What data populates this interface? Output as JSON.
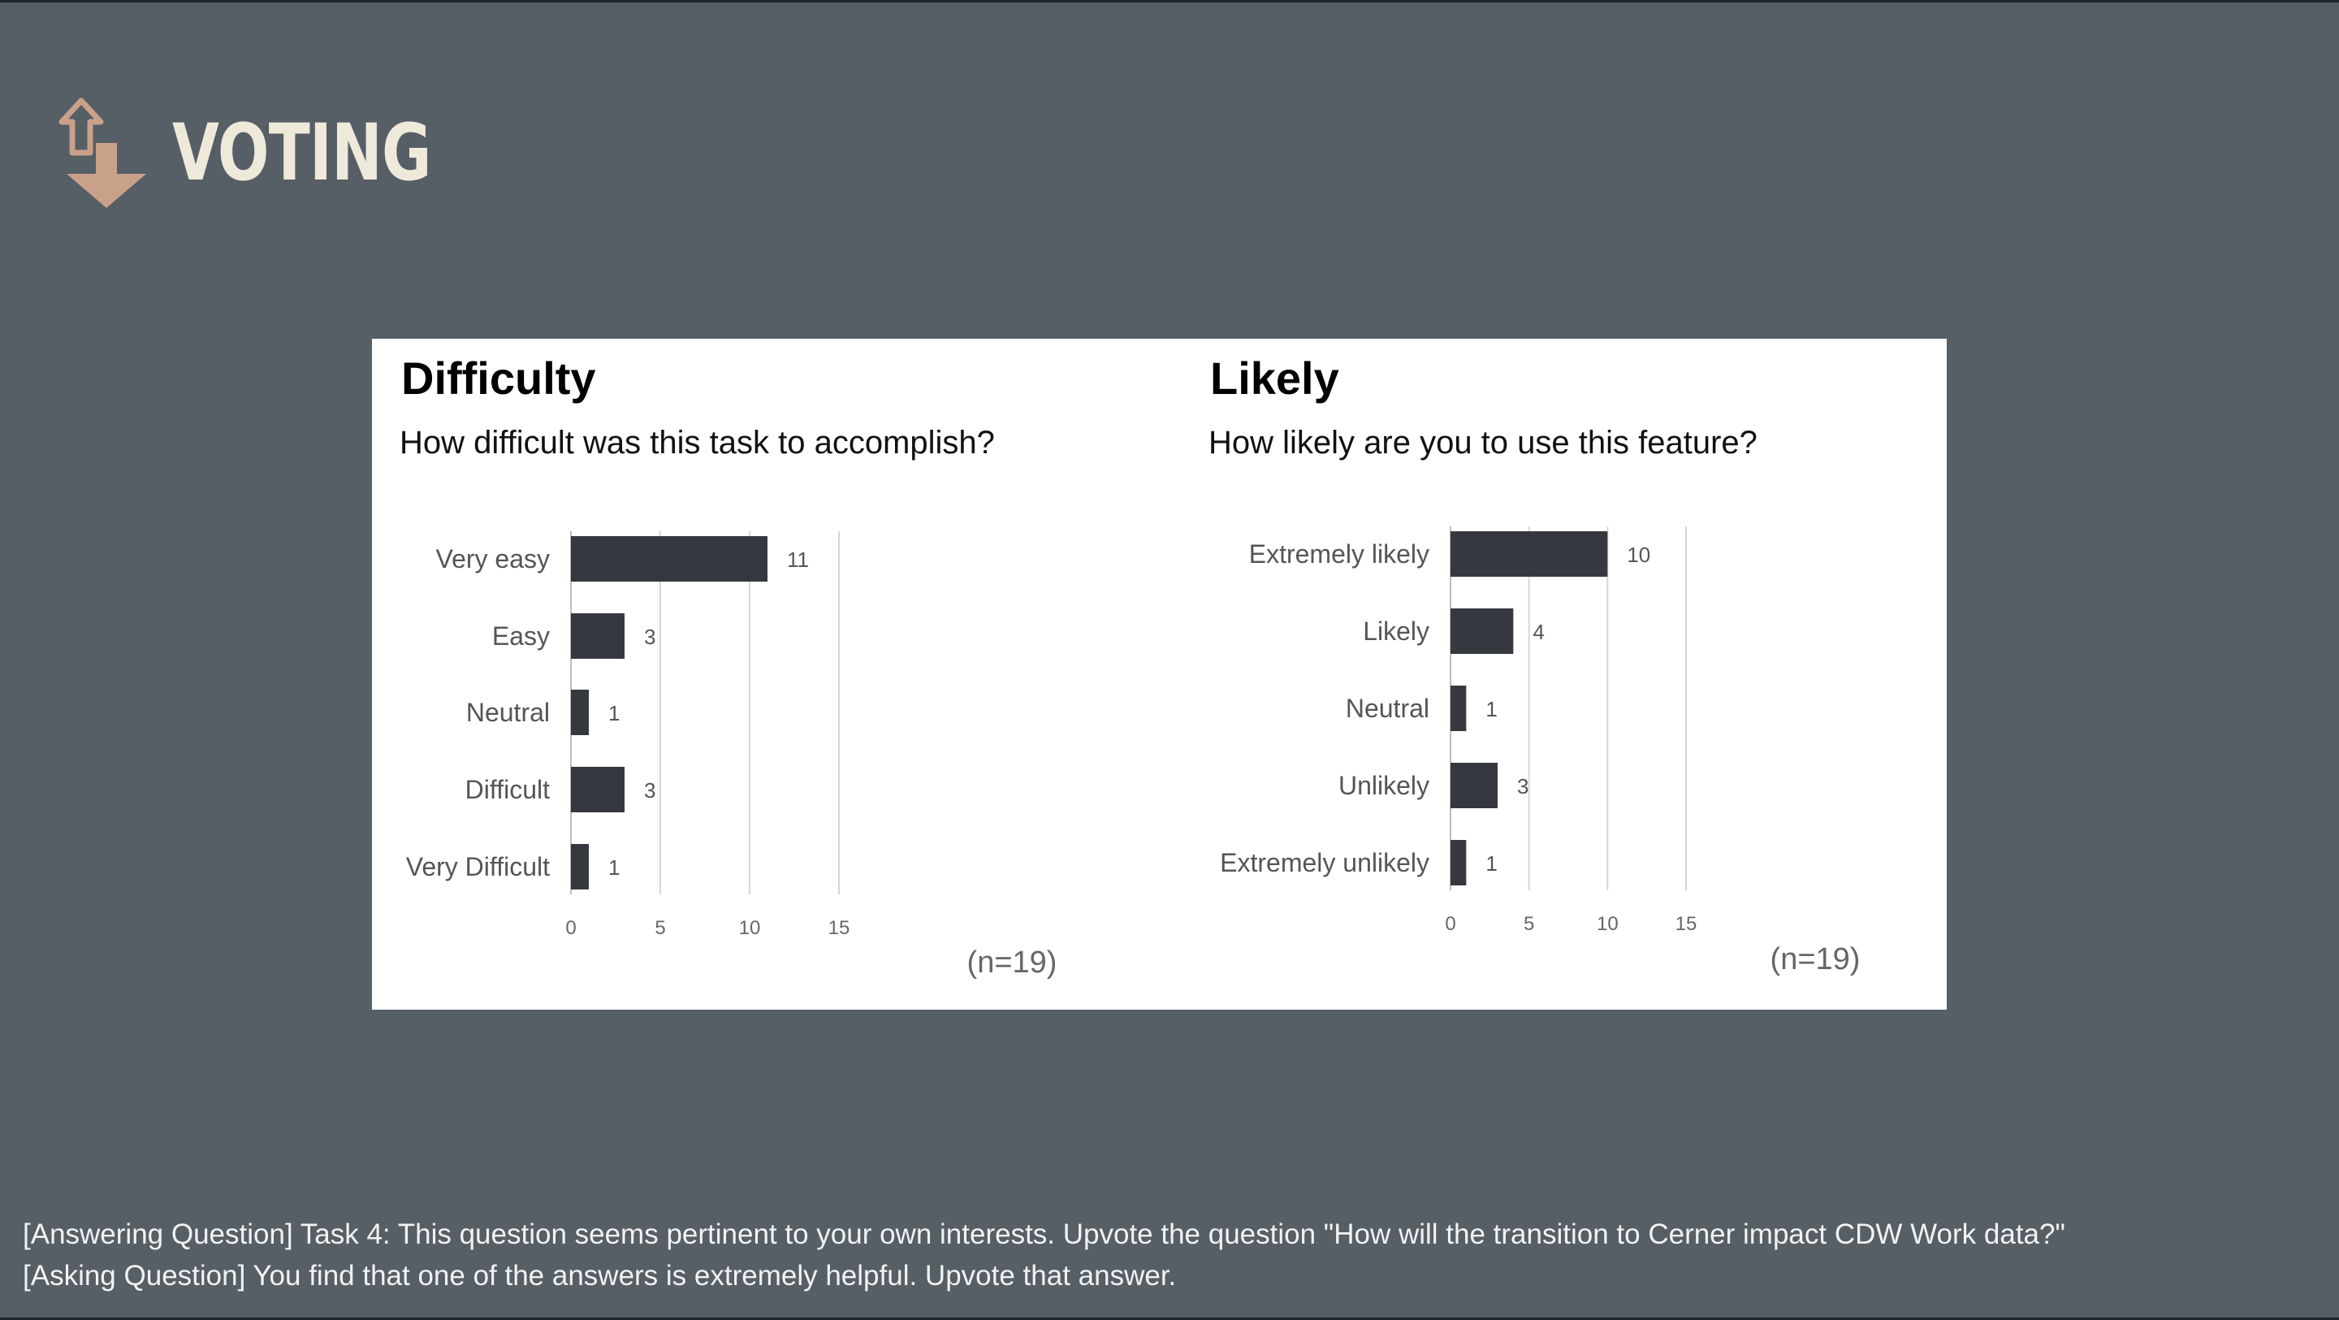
{
  "page": {
    "title": "VOTING",
    "icon": "vote-arrows-icon",
    "icon_color": "#c9a189",
    "background_color": "#565e66"
  },
  "chart_data": [
    {
      "type": "bar",
      "orientation": "horizontal",
      "title": "Difficulty",
      "subtitle": "How difficult was this task to accomplish?",
      "categories": [
        "Very easy",
        "Easy",
        "Neutral",
        "Difficult",
        "Very Difficult"
      ],
      "values": [
        11,
        3,
        1,
        3,
        1
      ],
      "xlim": [
        0,
        15
      ],
      "xticks": [
        0,
        5,
        10,
        15
      ],
      "grid": true,
      "note": "(n=19)",
      "bar_color": "#363840"
    },
    {
      "type": "bar",
      "orientation": "horizontal",
      "title": "Likely",
      "subtitle": "How likely are you to use this feature?",
      "categories": [
        "Extremely likely",
        "Likely",
        "Neutral",
        "Unlikely",
        "Extremely unlikely"
      ],
      "values": [
        10,
        4,
        1,
        3,
        1
      ],
      "xlim": [
        0,
        15
      ],
      "xticks": [
        0,
        5,
        10,
        15
      ],
      "grid": true,
      "note": "(n=19)",
      "bar_color": "#363840"
    }
  ],
  "instructions": [
    "[Answering Question] Task 4: This question seems pertinent to your own interests. Upvote the question \"How will the transition to Cerner impact CDW Work data?\"",
    "[Asking Question] You find that one of the answers is extremely helpful. Upvote that answer."
  ]
}
